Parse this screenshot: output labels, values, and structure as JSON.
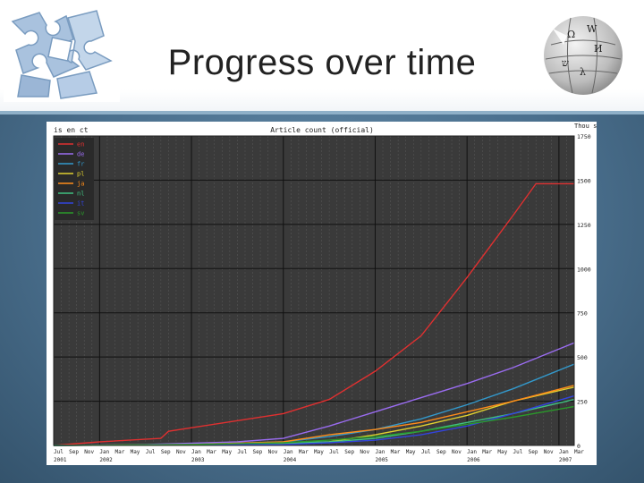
{
  "slide": {
    "title": "Progress over time"
  },
  "logos": {
    "left": "puzzle-icon",
    "right": "wikipedia-globe-icon"
  },
  "colors": {
    "slide_bg": "#4a6f8d",
    "plot_bg": "#3a3a3a",
    "grid_major": "#111111",
    "grid_minor": "#555555"
  },
  "chart_data": {
    "type": "line",
    "title": "Article count (official)",
    "corner_label": "is en   ct",
    "ylabel": "",
    "ylim": [
      0,
      1750000
    ],
    "y_ticks": [
      0,
      250000,
      500000,
      750000,
      1000000,
      1250000,
      1500000,
      1750000
    ],
    "y_tick_labels": [
      "0",
      "250",
      "500",
      "750",
      "1000",
      "1250",
      "1500",
      "1750"
    ],
    "y_unit_label": "Thou s",
    "x_range": [
      "2001-07",
      "2007-03"
    ],
    "x_month_labels": [
      "Jul",
      "Sep",
      "Nov",
      "Jan",
      "Mar",
      "May",
      "Jul",
      "Sep",
      "Nov",
      "Jan",
      "Mar",
      "May",
      "Jul",
      "Sep",
      "Nov",
      "Jan",
      "Mar",
      "May",
      "Jul",
      "Sep",
      "Nov",
      "Jan",
      "Mar",
      "May",
      "Jul",
      "Sep",
      "Nov",
      "Jan",
      "Mar",
      "May",
      "Jul",
      "Sep",
      "Nov",
      "Jan",
      "Mar"
    ],
    "x_year_labels": [
      {
        "label": "2001",
        "date": "2001-07"
      },
      {
        "label": "2002",
        "date": "2002-01"
      },
      {
        "label": "2003",
        "date": "2003-01"
      },
      {
        "label": "2004",
        "date": "2004-01"
      },
      {
        "label": "2005",
        "date": "2005-01"
      },
      {
        "label": "2006",
        "date": "2006-01"
      },
      {
        "label": "2007",
        "date": "2007-01"
      }
    ],
    "grid": true,
    "legend_position": "top-left",
    "series": [
      {
        "name": "en",
        "color": "#e03030",
        "points": [
          [
            "2001-07",
            0
          ],
          [
            "2002-01",
            20000
          ],
          [
            "2002-09",
            40000
          ],
          [
            "2002-10",
            80000
          ],
          [
            "2003-01",
            100000
          ],
          [
            "2003-07",
            140000
          ],
          [
            "2004-01",
            180000
          ],
          [
            "2004-07",
            260000
          ],
          [
            "2005-01",
            420000
          ],
          [
            "2005-07",
            620000
          ],
          [
            "2006-01",
            950000
          ],
          [
            "2006-07",
            1300000
          ],
          [
            "2006-10",
            1480000
          ],
          [
            "2007-03",
            1480000
          ]
        ]
      },
      {
        "name": "de",
        "color": "#9a6cf0",
        "points": [
          [
            "2001-07",
            0
          ],
          [
            "2002-07",
            5000
          ],
          [
            "2003-07",
            20000
          ],
          [
            "2004-01",
            40000
          ],
          [
            "2004-07",
            110000
          ],
          [
            "2005-01",
            190000
          ],
          [
            "2005-07",
            270000
          ],
          [
            "2006-01",
            350000
          ],
          [
            "2006-07",
            440000
          ],
          [
            "2007-03",
            580000
          ]
        ]
      },
      {
        "name": "fr",
        "color": "#3399cc",
        "points": [
          [
            "2001-07",
            0
          ],
          [
            "2003-01",
            5000
          ],
          [
            "2004-01",
            20000
          ],
          [
            "2004-07",
            50000
          ],
          [
            "2005-01",
            90000
          ],
          [
            "2005-07",
            150000
          ],
          [
            "2006-01",
            230000
          ],
          [
            "2006-07",
            320000
          ],
          [
            "2007-03",
            460000
          ]
        ]
      },
      {
        "name": "pl",
        "color": "#e0d030",
        "points": [
          [
            "2001-07",
            0
          ],
          [
            "2003-07",
            5000
          ],
          [
            "2004-07",
            20000
          ],
          [
            "2005-01",
            60000
          ],
          [
            "2005-07",
            110000
          ],
          [
            "2006-01",
            170000
          ],
          [
            "2006-07",
            250000
          ],
          [
            "2007-03",
            330000
          ]
        ]
      },
      {
        "name": "ja",
        "color": "#ff8c1a",
        "points": [
          [
            "2001-07",
            0
          ],
          [
            "2003-01",
            5000
          ],
          [
            "2004-01",
            20000
          ],
          [
            "2004-07",
            60000
          ],
          [
            "2005-01",
            90000
          ],
          [
            "2005-07",
            130000
          ],
          [
            "2006-01",
            190000
          ],
          [
            "2006-07",
            250000
          ],
          [
            "2007-03",
            340000
          ]
        ]
      },
      {
        "name": "nl",
        "color": "#40c080",
        "points": [
          [
            "2001-07",
            0
          ],
          [
            "2003-07",
            5000
          ],
          [
            "2004-07",
            20000
          ],
          [
            "2005-01",
            40000
          ],
          [
            "2005-07",
            80000
          ],
          [
            "2006-01",
            130000
          ],
          [
            "2006-07",
            180000
          ],
          [
            "2007-03",
            260000
          ]
        ]
      },
      {
        "name": "it",
        "color": "#3344dd",
        "points": [
          [
            "2001-07",
            0
          ],
          [
            "2004-01",
            5000
          ],
          [
            "2004-07",
            15000
          ],
          [
            "2005-01",
            30000
          ],
          [
            "2005-07",
            60000
          ],
          [
            "2006-01",
            110000
          ],
          [
            "2006-07",
            180000
          ],
          [
            "2007-03",
            280000
          ]
        ]
      },
      {
        "name": "sv",
        "color": "#2a9a2a",
        "points": [
          [
            "2001-07",
            0
          ],
          [
            "2003-01",
            5000
          ],
          [
            "2004-01",
            15000
          ],
          [
            "2004-07",
            30000
          ],
          [
            "2005-01",
            50000
          ],
          [
            "2005-07",
            80000
          ],
          [
            "2006-01",
            120000
          ],
          [
            "2006-07",
            160000
          ],
          [
            "2007-03",
            220000
          ]
        ]
      }
    ]
  }
}
